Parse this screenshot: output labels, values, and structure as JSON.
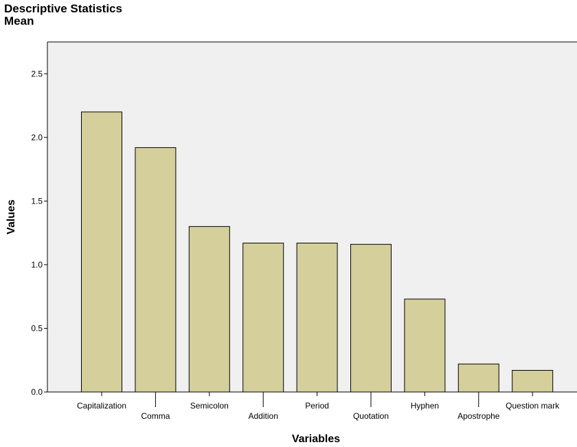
{
  "chart_data": {
    "type": "bar",
    "title": "Descriptive Statistics",
    "subtitle": "Mean",
    "xlabel": "Variables",
    "ylabel": "Values",
    "ylim": [
      0,
      2.75
    ],
    "yticks": [
      "0.0",
      "0.5",
      "1.0",
      "1.5",
      "2.0",
      "2.5"
    ],
    "categories": [
      "Capitalization",
      "Comma",
      "Semicolon",
      "Addition",
      "Period",
      "Quotation",
      "Hyphen",
      "Apostrophe",
      "Question mark"
    ],
    "values": [
      2.2,
      1.92,
      1.3,
      1.17,
      1.17,
      1.16,
      0.73,
      0.22,
      0.17
    ],
    "grid": false,
    "legend": "none",
    "colors": {
      "bar_fill": "#d4cf9b",
      "bar_stroke": "#000000",
      "plot_background": "#f0f0f0",
      "axis": "#000000"
    }
  }
}
